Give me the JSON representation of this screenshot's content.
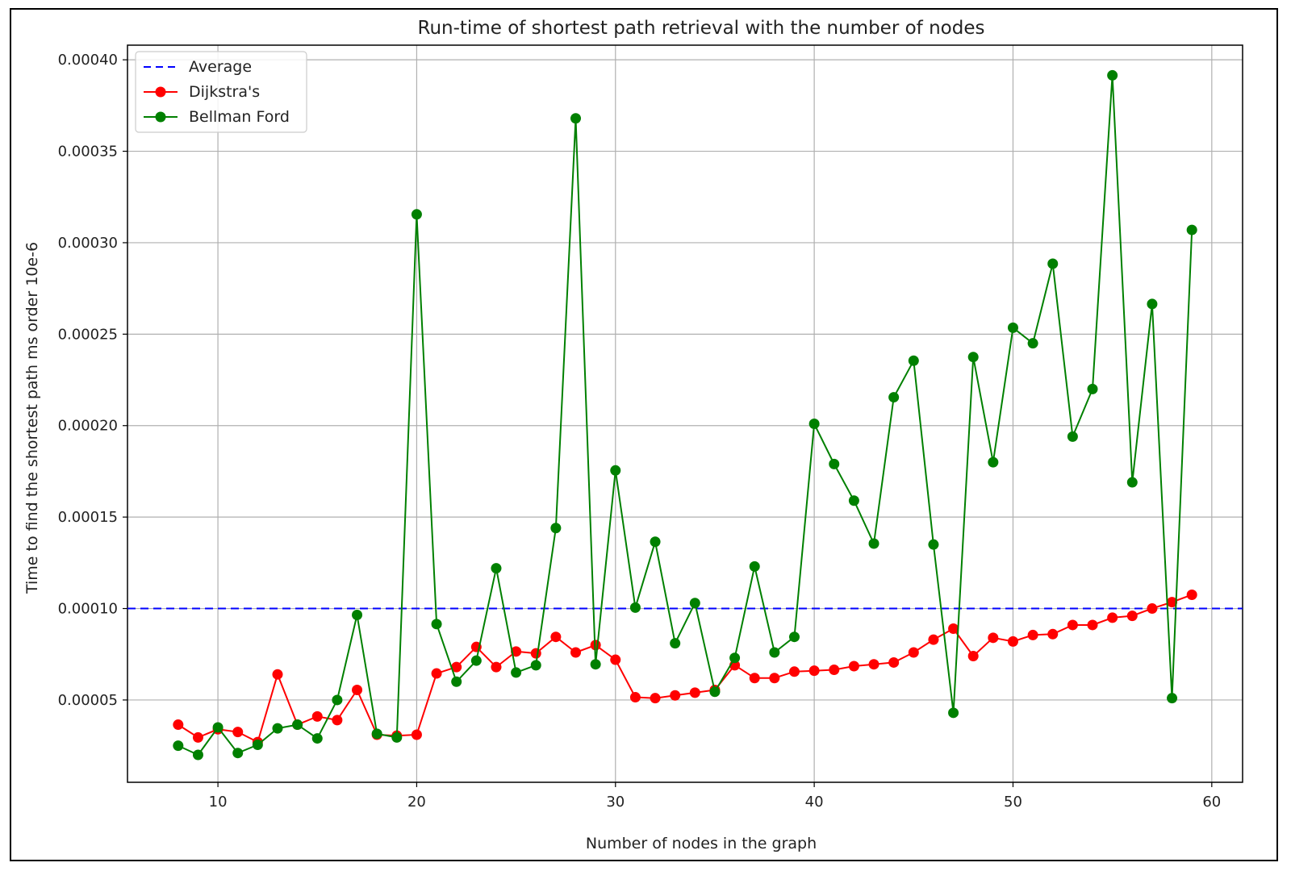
{
  "chart_data": {
    "type": "line",
    "title": "Run-time of shortest path retrieval with the number of nodes",
    "xlabel": "Number of nodes in the graph",
    "ylabel": "Time to find the shortest path ms order 10e-6",
    "xlim": [
      5.45,
      61.55
    ],
    "ylim": [
      5e-06,
      0.000408
    ],
    "x_ticks": [
      10,
      20,
      30,
      40,
      50,
      60
    ],
    "y_ticks": [
      5e-05,
      0.0001,
      0.00015,
      0.0002,
      0.00025,
      0.0003,
      0.00035,
      0.0004
    ],
    "x_tick_labels": [
      "10",
      "20",
      "30",
      "40",
      "50",
      "60"
    ],
    "y_tick_labels": [
      "0.00005",
      "0.00010",
      "0.00015",
      "0.00020",
      "0.00025",
      "0.00030",
      "0.00035",
      "0.00040"
    ],
    "grid": true,
    "legend_position": "top-left",
    "x": [
      8,
      9,
      10,
      11,
      12,
      13,
      14,
      15,
      16,
      17,
      18,
      19,
      20,
      21,
      22,
      23,
      24,
      25,
      26,
      27,
      28,
      29,
      30,
      31,
      32,
      33,
      34,
      35,
      36,
      37,
      38,
      39,
      40,
      41,
      42,
      43,
      44,
      45,
      46,
      47,
      48,
      49,
      50,
      51,
      52,
      53,
      54,
      55,
      56,
      57,
      58,
      59
    ],
    "average": {
      "name": "Average",
      "value": 0.0001,
      "color": "#0000ff",
      "style": "dashed"
    },
    "series": [
      {
        "name": "Dijkstra's",
        "color": "#ff0000",
        "marker": "circle",
        "values": [
          3.65e-05,
          2.95e-05,
          3.4e-05,
          3.25e-05,
          2.7e-05,
          6.4e-05,
          3.65e-05,
          4.1e-05,
          3.9e-05,
          5.55e-05,
          3.1e-05,
          3.05e-05,
          3.1e-05,
          6.45e-05,
          6.8e-05,
          7.9e-05,
          6.8e-05,
          7.65e-05,
          7.55e-05,
          8.45e-05,
          7.6e-05,
          8e-05,
          7.2e-05,
          5.15e-05,
          5.1e-05,
          5.25e-05,
          5.4e-05,
          5.55e-05,
          6.9e-05,
          6.2e-05,
          6.2e-05,
          6.55e-05,
          6.6e-05,
          6.65e-05,
          6.85e-05,
          6.95e-05,
          7.05e-05,
          7.6e-05,
          8.3e-05,
          8.9e-05,
          7.4e-05,
          8.4e-05,
          8.2e-05,
          8.55e-05,
          8.6e-05,
          9.1e-05,
          9.1e-05,
          9.5e-05,
          9.6e-05,
          0.0001,
          0.0001035,
          0.0001075
        ]
      },
      {
        "name": "Bellman Ford",
        "color": "#008000",
        "marker": "circle",
        "values": [
          2.5e-05,
          2e-05,
          3.5e-05,
          2.1e-05,
          2.55e-05,
          3.45e-05,
          3.65e-05,
          2.9e-05,
          5e-05,
          9.65e-05,
          3.15e-05,
          2.95e-05,
          0.0003155,
          9.15e-05,
          6e-05,
          7.15e-05,
          0.000122,
          6.5e-05,
          6.9e-05,
          0.000144,
          0.000368,
          6.95e-05,
          0.0001755,
          0.0001005,
          0.0001365,
          8.1e-05,
          0.000103,
          5.45e-05,
          7.3e-05,
          0.000123,
          7.6e-05,
          8.45e-05,
          0.000201,
          0.000179,
          0.000159,
          0.0001355,
          0.0002155,
          0.0002355,
          0.000135,
          4.3e-05,
          0.0002375,
          0.00018,
          0.0002535,
          0.000245,
          0.0002885,
          0.000194,
          0.00022,
          0.0003915,
          0.000169,
          0.0002665,
          5.1e-05,
          0.000307
        ]
      }
    ]
  }
}
